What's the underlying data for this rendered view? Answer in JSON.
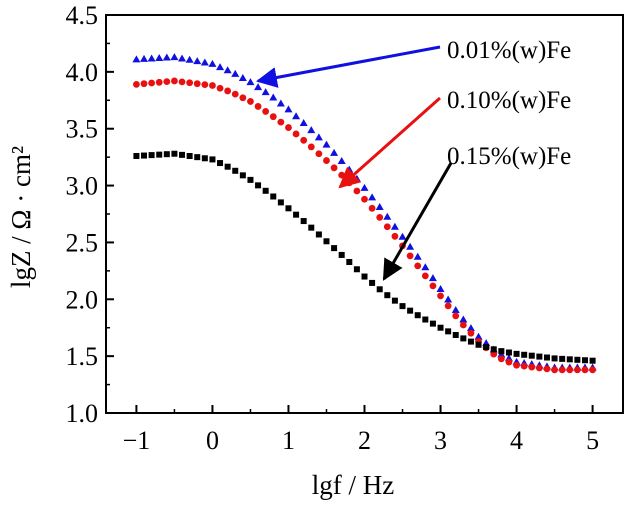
{
  "chart_data": {
    "type": "scatter",
    "xlabel": "lgf / Hz",
    "ylabel": "lgZ / Ω · cm²",
    "xlim": [
      -1.4,
      5.4
    ],
    "ylim": [
      1.0,
      4.5
    ],
    "xticks": [
      "−1",
      "0",
      "1",
      "2",
      "3",
      "4",
      "5"
    ],
    "xtick_values": [
      -1,
      0,
      1,
      2,
      3,
      4,
      5
    ],
    "yticks": [
      "1.0",
      "1.5",
      "2.0",
      "2.5",
      "3.0",
      "3.5",
      "4.0",
      "4.5"
    ],
    "ytick_values": [
      1.0,
      1.5,
      2.0,
      2.5,
      3.0,
      3.5,
      4.0,
      4.5
    ],
    "grid": false,
    "legend_placement": "annotated arrows, upper right",
    "series": [
      {
        "name": "0.01%(w)Fe",
        "marker": "triangle",
        "color": "#1010e0",
        "x": [
          -1.0,
          -0.5,
          0.0,
          0.25,
          0.5,
          0.75,
          1.0,
          1.25,
          1.5,
          1.75,
          2.0,
          2.25,
          2.5,
          2.75,
          3.0,
          3.25,
          3.5,
          3.75,
          4.0,
          4.5,
          5.0
        ],
        "y": [
          4.11,
          4.13,
          4.07,
          4.0,
          3.91,
          3.8,
          3.67,
          3.52,
          3.36,
          3.18,
          2.98,
          2.77,
          2.55,
          2.33,
          2.09,
          1.86,
          1.67,
          1.53,
          1.45,
          1.4,
          1.4
        ]
      },
      {
        "name": "0.10%(w)Fe",
        "marker": "circle",
        "color": "#e81010",
        "x": [
          -1.0,
          -0.5,
          0.0,
          0.25,
          0.5,
          0.75,
          1.0,
          1.25,
          1.5,
          1.75,
          2.0,
          2.25,
          2.5,
          2.75,
          3.0,
          3.25,
          3.5,
          3.75,
          4.0,
          4.5,
          5.0
        ],
        "y": [
          3.89,
          3.92,
          3.88,
          3.82,
          3.74,
          3.63,
          3.51,
          3.37,
          3.22,
          3.06,
          2.88,
          2.68,
          2.47,
          2.25,
          2.03,
          1.81,
          1.63,
          1.49,
          1.42,
          1.38,
          1.38
        ]
      },
      {
        "name": "0.15%(w)Fe",
        "marker": "square",
        "color": "#000000",
        "x": [
          -1.0,
          -0.5,
          0.0,
          0.25,
          0.5,
          0.75,
          1.0,
          1.25,
          1.5,
          1.75,
          2.0,
          2.25,
          2.5,
          2.75,
          3.0,
          3.25,
          3.5,
          3.75,
          4.0,
          4.5,
          5.0
        ],
        "y": [
          3.26,
          3.28,
          3.23,
          3.15,
          3.05,
          2.93,
          2.8,
          2.66,
          2.51,
          2.36,
          2.2,
          2.06,
          1.94,
          1.84,
          1.75,
          1.67,
          1.6,
          1.55,
          1.52,
          1.48,
          1.46
        ]
      }
    ],
    "annotations": [
      {
        "label": "0.01%(w)Fe",
        "color": "#1010e0",
        "text_x": 1.6,
        "text_y": 4.29,
        "arrow_from": [
          1.6,
          4.29
        ],
        "arrow_to": [
          0.55,
          3.95
        ]
      },
      {
        "label": "0.10%(w)Fe",
        "color": "#e81010",
        "text_x": 1.6,
        "text_y": 3.8,
        "arrow_from": [
          1.6,
          3.8
        ],
        "arrow_to": [
          1.6,
          3.0
        ]
      },
      {
        "label": "0.15%(w)Fe",
        "color": "#000000",
        "text_x": 1.6,
        "text_y": 3.3,
        "arrow_from": [
          1.6,
          3.3
        ],
        "arrow_to": [
          2.3,
          2.3
        ]
      }
    ]
  }
}
